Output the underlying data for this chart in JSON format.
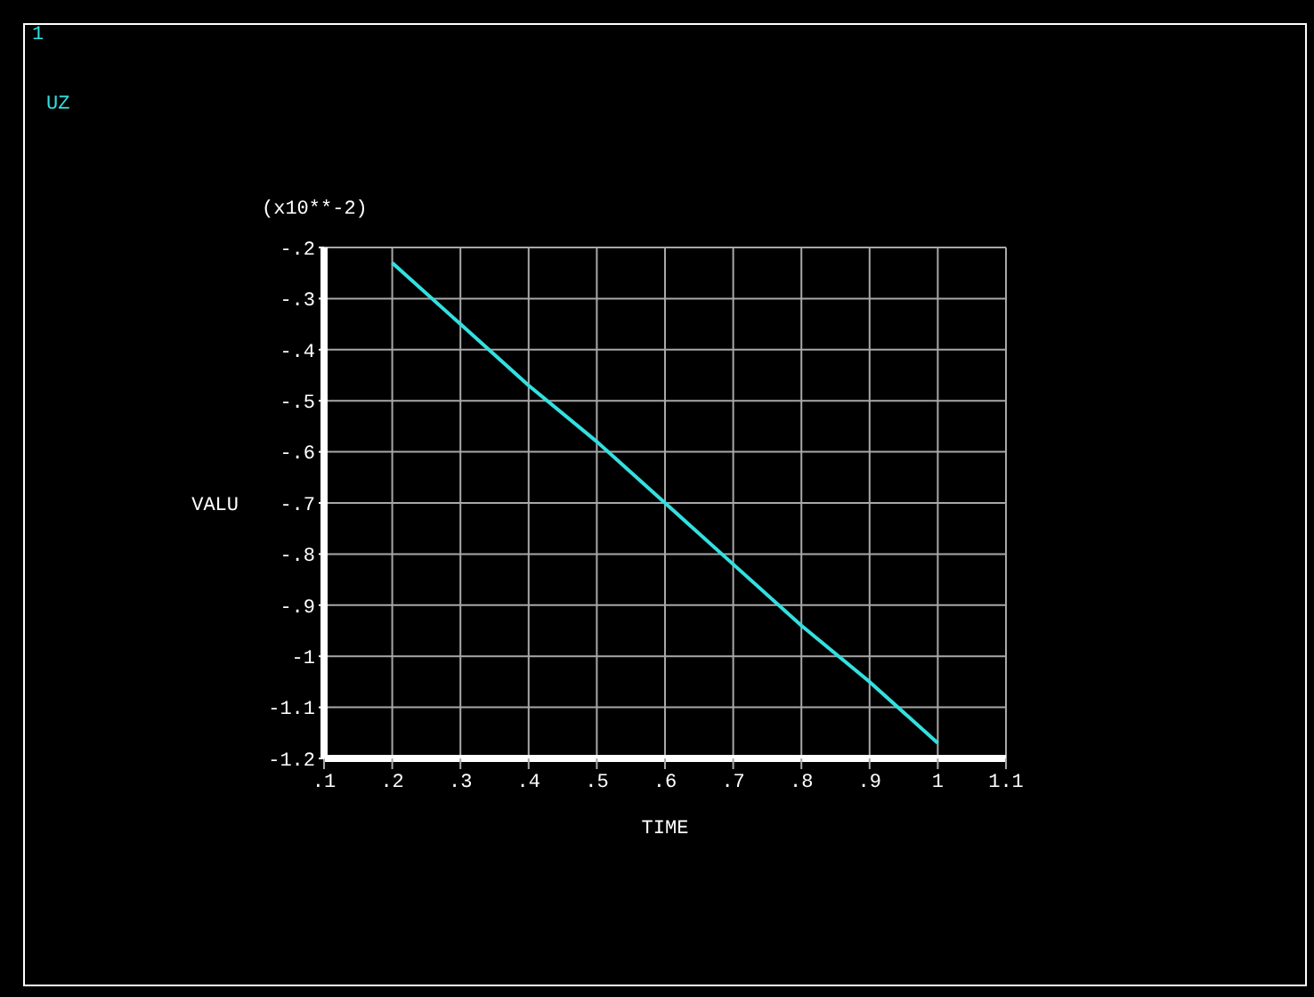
{
  "chart_data": {
    "type": "line",
    "xlabel": "TIME",
    "ylabel": "VALU",
    "annotations": [
      "1",
      "(x10**-2)"
    ],
    "x": [
      0.2,
      0.3,
      0.4,
      0.5,
      0.6,
      0.7,
      0.8,
      0.9,
      1.0
    ],
    "series": [
      {
        "name": "UZ",
        "color": "#33e0e0",
        "values": [
          -0.23,
          -0.35,
          -0.47,
          -0.58,
          -0.7,
          -0.82,
          -0.94,
          -1.05,
          -1.17
        ]
      }
    ],
    "xlim": [
      0.1,
      1.1
    ],
    "xticks": [
      {
        "value": 0.1,
        "label": ".1"
      },
      {
        "value": 0.2,
        "label": ".2"
      },
      {
        "value": 0.3,
        "label": ".3"
      },
      {
        "value": 0.4,
        "label": ".4"
      },
      {
        "value": 0.5,
        "label": ".5"
      },
      {
        "value": 0.6,
        "label": ".6"
      },
      {
        "value": 0.7,
        "label": ".7"
      },
      {
        "value": 0.8,
        "label": ".8"
      },
      {
        "value": 0.9,
        "label": ".9"
      },
      1,
      1.1
    ],
    "ylim": [
      -1.2,
      -0.2
    ],
    "yticks": [
      {
        "value": -0.2,
        "label": "-.2"
      },
      {
        "value": -0.3,
        "label": "-.3"
      },
      {
        "value": -0.4,
        "label": "-.4"
      },
      {
        "value": -0.5,
        "label": "-.5"
      },
      {
        "value": -0.6,
        "label": "-.6"
      },
      {
        "value": -0.7,
        "label": "-.7"
      },
      {
        "value": -0.8,
        "label": "-.8"
      },
      {
        "value": -0.9,
        "label": "-.9"
      },
      -1,
      -1.1,
      -1.2
    ],
    "grid": true,
    "legend": "top left",
    "line_style": "solid"
  }
}
